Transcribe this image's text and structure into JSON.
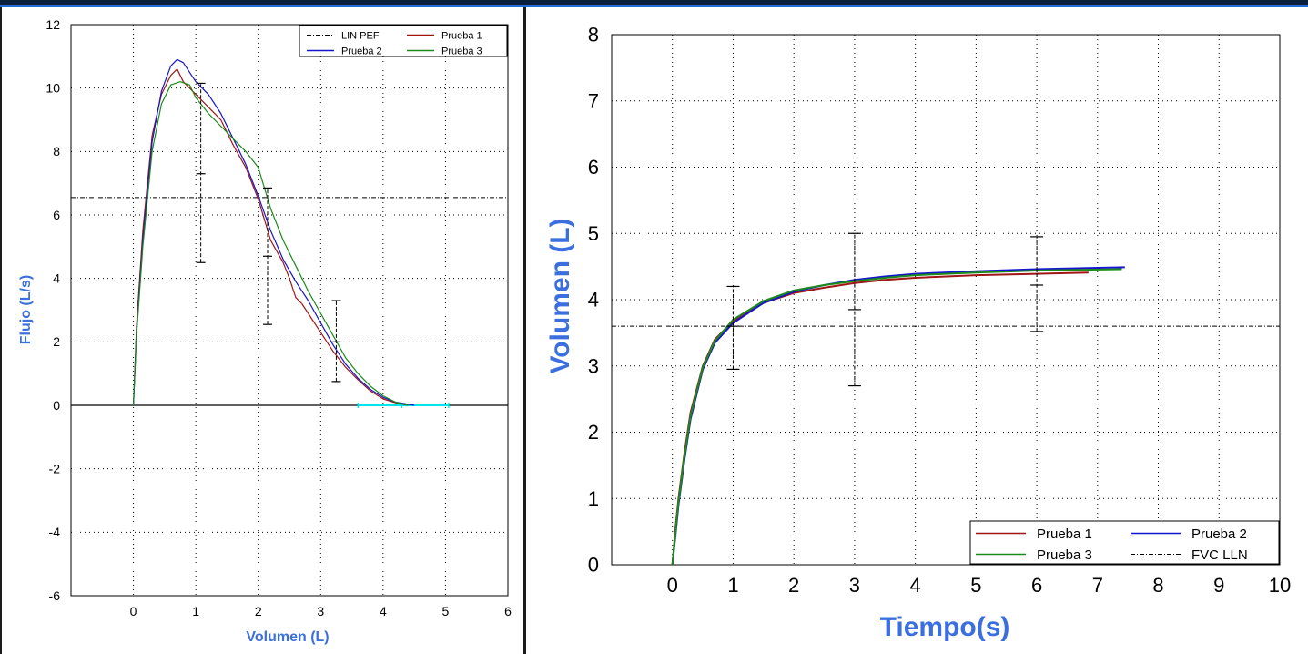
{
  "theme": {
    "title_bar": "#0a1f3c",
    "title_accent": "#1e6fd9",
    "axis_title_color": "#3b6fe0",
    "ref_line_color": "#000000",
    "fvc_band_color": "#00e5ee"
  },
  "chart_data": [
    {
      "type": "line",
      "name": "flow-volume",
      "xlabel": "Volumen (L)",
      "ylabel": "Flujo (L/s)",
      "xlim": [
        -1,
        6
      ],
      "ylim": [
        -6,
        12
      ],
      "x_ticks": [
        "0",
        "1",
        "2",
        "3",
        "4",
        "5",
        "6"
      ],
      "y_ticks": [
        "-6",
        "-4",
        "-2",
        "0",
        "2",
        "4",
        "6",
        "8",
        "10",
        "12"
      ],
      "grid": true,
      "legend_position": "top-right",
      "legend": [
        "LIN PEF",
        "Prueba 1",
        "Prueba 2",
        "Prueba 3"
      ],
      "series": [
        {
          "name": "Prueba 1",
          "color": "#a01515",
          "x": [
            0,
            0.05,
            0.15,
            0.3,
            0.45,
            0.6,
            0.7,
            0.8,
            1.0,
            1.2,
            1.4,
            1.6,
            1.8,
            2.0,
            2.2,
            2.4,
            2.5,
            2.6,
            2.7,
            2.8,
            3.0,
            3.2,
            3.4,
            3.6,
            3.8,
            4.0,
            4.2,
            4.4
          ],
          "y": [
            0,
            2.5,
            5.5,
            8.5,
            9.8,
            10.4,
            10.6,
            10.2,
            9.8,
            9.4,
            9.0,
            8.2,
            7.5,
            6.5,
            5.2,
            4.5,
            4.0,
            3.4,
            3.2,
            2.9,
            2.3,
            1.7,
            1.2,
            0.8,
            0.45,
            0.2,
            0.08,
            0.0
          ]
        },
        {
          "name": "Prueba 2",
          "color": "#1515d0",
          "x": [
            0,
            0.05,
            0.15,
            0.3,
            0.45,
            0.6,
            0.7,
            0.8,
            1.0,
            1.2,
            1.4,
            1.6,
            1.8,
            2.0,
            2.2,
            2.4,
            2.6,
            2.8,
            3.0,
            3.2,
            3.4,
            3.6,
            3.8,
            4.0,
            4.2,
            4.5
          ],
          "y": [
            0,
            2.3,
            5.2,
            8.3,
            9.9,
            10.7,
            10.9,
            10.8,
            10.2,
            9.8,
            9.2,
            8.4,
            7.6,
            6.6,
            5.5,
            4.6,
            3.9,
            3.3,
            2.6,
            1.9,
            1.3,
            0.85,
            0.5,
            0.25,
            0.1,
            0.0
          ]
        },
        {
          "name": "Prueba 3",
          "color": "#1a8a1a",
          "x": [
            0,
            0.05,
            0.15,
            0.3,
            0.45,
            0.6,
            0.75,
            0.9,
            1.0,
            1.2,
            1.4,
            1.6,
            1.8,
            2.0,
            2.2,
            2.4,
            2.6,
            2.8,
            3.0,
            3.2,
            3.4,
            3.6,
            3.8,
            4.0,
            4.2,
            4.4
          ],
          "y": [
            0,
            2.2,
            5.0,
            8.0,
            9.5,
            10.1,
            10.2,
            10.1,
            9.7,
            9.2,
            8.8,
            8.4,
            8.0,
            7.5,
            6.2,
            5.2,
            4.4,
            3.6,
            2.9,
            2.2,
            1.5,
            1.0,
            0.6,
            0.3,
            0.1,
            0.0
          ]
        }
      ],
      "reference_line": {
        "name": "LIN PEF",
        "y": 6.55
      },
      "error_bars": [
        {
          "x": 1.08,
          "center": 7.3,
          "low": 4.5,
          "high": 10.15
        },
        {
          "x": 2.15,
          "center": 4.7,
          "low": 2.55,
          "high": 6.85
        },
        {
          "x": 3.25,
          "center": 2.0,
          "low": 0.75,
          "high": 3.3
        }
      ],
      "fvc_band": {
        "y": 0,
        "x_low": 3.6,
        "x_mid": 4.3,
        "x_high": 5.05
      }
    },
    {
      "type": "line",
      "name": "volume-time",
      "xlabel": "Tiempo(s)",
      "ylabel": "Volumen (L)",
      "xlim": [
        -1,
        10
      ],
      "ylim": [
        0,
        8
      ],
      "x_ticks": [
        "0",
        "1",
        "2",
        "3",
        "4",
        "5",
        "6",
        "7",
        "8",
        "9",
        "10"
      ],
      "y_ticks": [
        "0",
        "1",
        "2",
        "3",
        "4",
        "5",
        "6",
        "7",
        "8"
      ],
      "grid": true,
      "legend_position": "bottom-right",
      "legend": [
        "Prueba 1",
        "Prueba 2",
        "Prueba 3",
        "FVC LLN"
      ],
      "series": [
        {
          "name": "Prueba 1",
          "color": "#a01515",
          "x": [
            0,
            0.05,
            0.1,
            0.2,
            0.3,
            0.5,
            0.7,
            1.0,
            1.5,
            2.0,
            2.5,
            3.0,
            3.5,
            4.0,
            5.0,
            6.0,
            6.85
          ],
          "y": [
            0,
            0.55,
            1.0,
            1.7,
            2.3,
            3.0,
            3.4,
            3.68,
            3.95,
            4.1,
            4.18,
            4.25,
            4.3,
            4.33,
            4.37,
            4.39,
            4.41
          ]
        },
        {
          "name": "Prueba 2",
          "color": "#1515d0",
          "x": [
            0,
            0.05,
            0.1,
            0.2,
            0.3,
            0.5,
            0.7,
            1.0,
            1.5,
            2.0,
            2.5,
            3.0,
            3.5,
            4.0,
            5.0,
            6.0,
            7.45
          ],
          "y": [
            0,
            0.45,
            0.9,
            1.6,
            2.2,
            2.95,
            3.35,
            3.65,
            3.95,
            4.12,
            4.22,
            4.3,
            4.35,
            4.39,
            4.43,
            4.46,
            4.49
          ]
        },
        {
          "name": "Prueba 3",
          "color": "#1a8a1a",
          "x": [
            0,
            0.05,
            0.1,
            0.2,
            0.3,
            0.5,
            0.7,
            1.0,
            1.5,
            2.0,
            2.5,
            3.0,
            3.5,
            4.0,
            5.0,
            6.0,
            7.4
          ],
          "y": [
            0,
            0.5,
            0.95,
            1.65,
            2.25,
            2.98,
            3.38,
            3.7,
            3.98,
            4.14,
            4.22,
            4.28,
            4.33,
            4.37,
            4.41,
            4.44,
            4.46
          ]
        }
      ],
      "reference_line": {
        "name": "FVC LLN",
        "y": 3.6
      },
      "error_bars": [
        {
          "x": 1.0,
          "center": 3.6,
          "low": 2.95,
          "high": 4.2
        },
        {
          "x": 3.0,
          "center": 3.85,
          "low": 2.7,
          "high": 5.0
        },
        {
          "x": 6.0,
          "center": 4.22,
          "low": 3.52,
          "high": 4.95
        }
      ]
    }
  ]
}
